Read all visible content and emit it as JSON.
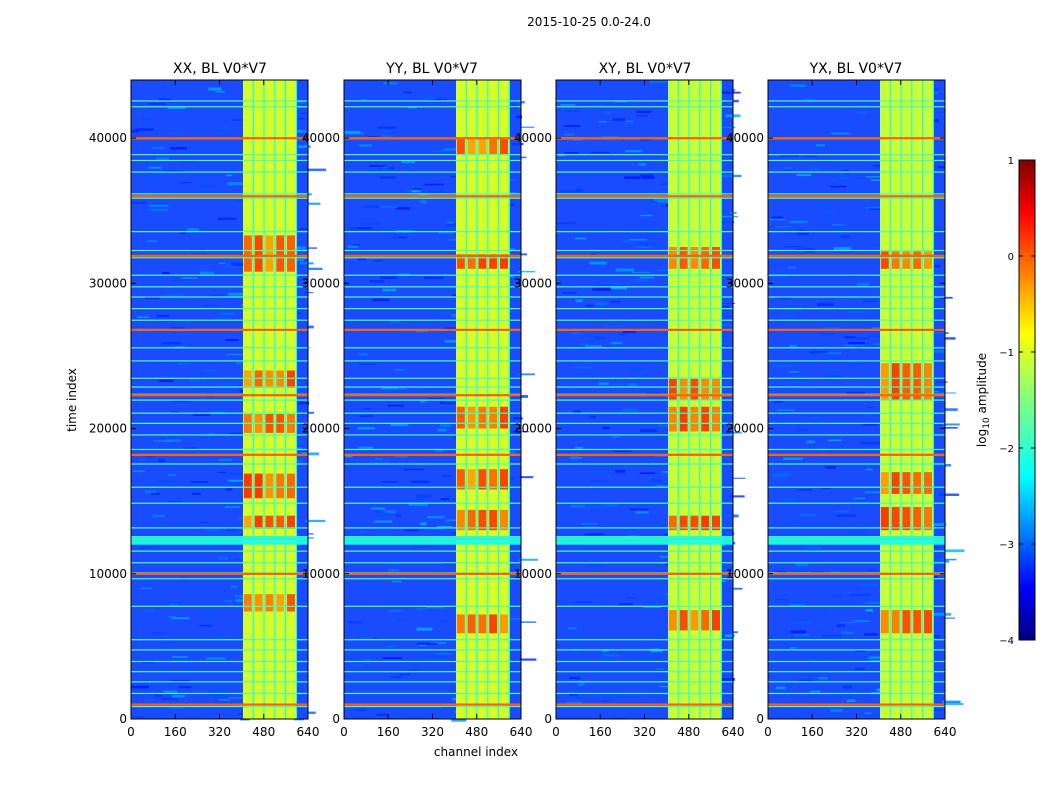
{
  "chart_data": {
    "type": "heatmap",
    "suptitle": "2015-10-25 0.0-24.0",
    "xlabel": "channel index",
    "ylabel": "time index",
    "xlim": [
      0,
      640
    ],
    "ylim": [
      0,
      44000
    ],
    "x_ticks": [
      0,
      160,
      320,
      480,
      640
    ],
    "x_tick_labels": [
      "0",
      "160",
      "320",
      "480",
      "640"
    ],
    "y_ticks": [
      0,
      10000,
      20000,
      30000,
      40000
    ],
    "y_tick_labels": [
      "0",
      "10000",
      "20000",
      "30000",
      "40000"
    ],
    "panels": [
      {
        "title": "XX, BL V0*V7",
        "band_strength": 0.85,
        "channel_band": [
          405,
          600
        ],
        "bright_blocks": [
          [
            13100,
            14000
          ],
          [
            7400,
            8600
          ],
          [
            15200,
            16900
          ],
          [
            19700,
            21000
          ],
          [
            22800,
            24000
          ],
          [
            30800,
            33300
          ]
        ]
      },
      {
        "title": "YY, BL V0*V7",
        "band_strength": 0.9,
        "channel_band": [
          405,
          600
        ],
        "bright_blocks": [
          [
            13000,
            14400
          ],
          [
            5900,
            7200
          ],
          [
            15800,
            17200
          ],
          [
            20000,
            21500
          ],
          [
            31000,
            32000
          ],
          [
            38900,
            40000
          ]
        ]
      },
      {
        "title": "XY, BL V0*V7",
        "band_strength": 0.7,
        "channel_band": [
          405,
          600
        ],
        "bright_blocks": [
          [
            13000,
            14000
          ],
          [
            6100,
            7500
          ],
          [
            19800,
            21500
          ],
          [
            22000,
            23500
          ],
          [
            31000,
            32500
          ]
        ]
      },
      {
        "title": "YX, BL V0*V7",
        "band_strength": 0.72,
        "channel_band": [
          405,
          600
        ],
        "bright_blocks": [
          [
            13000,
            14600
          ],
          [
            5900,
            7500
          ],
          [
            15500,
            17000
          ],
          [
            22000,
            24500
          ],
          [
            31000,
            32200
          ]
        ]
      }
    ],
    "rfi_time_rows": [
      900,
      1800,
      2600,
      3300,
      4000,
      4800,
      5500,
      7800,
      9700,
      10100,
      10800,
      11600,
      12200,
      12600,
      13200,
      14900,
      16000,
      17600,
      18200,
      18600,
      19600,
      20400,
      21100,
      22000,
      22400,
      22900,
      23500,
      24700,
      25600,
      26800,
      27500,
      28300,
      29100,
      29800,
      30600,
      31800,
      32300,
      33600,
      35900,
      36200,
      37700,
      38500,
      38900,
      40000,
      42200,
      42600
    ],
    "strong_rfi_rows": [
      1000,
      10000,
      12400,
      18200,
      22300,
      26800,
      31900,
      36000,
      40000
    ],
    "colorbar": {
      "label": "log10 amplitude",
      "label_base": "log",
      "label_sub": "10",
      "label_rest": " amplitude",
      "range": [
        -4,
        1
      ],
      "ticks": [
        1,
        0,
        -1,
        -2,
        -3,
        -4
      ],
      "tick_labels": [
        "1",
        "0",
        "−1",
        "−2",
        "−3",
        "−4"
      ],
      "colormap": "jet"
    }
  },
  "colors": {
    "jet": [
      "#00007f",
      "#0000ff",
      "#007fff",
      "#00ffff",
      "#7fff7f",
      "#ffff00",
      "#ff7f00",
      "#ff0000",
      "#7f0000"
    ]
  }
}
